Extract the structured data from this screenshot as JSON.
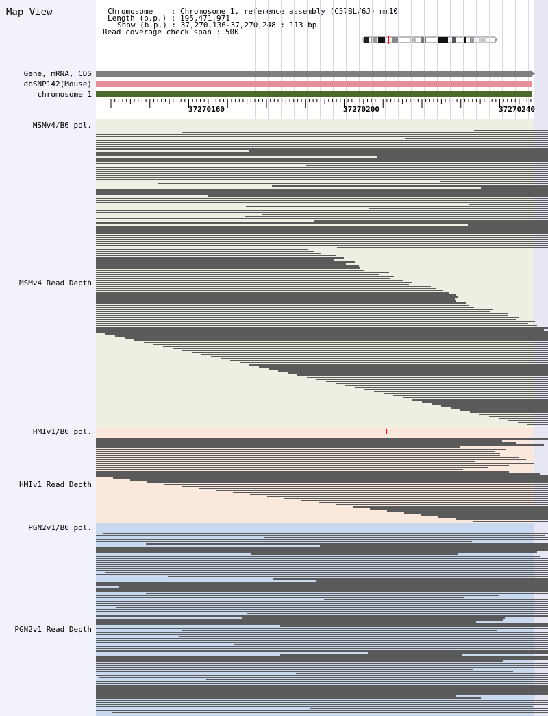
{
  "app": {
    "title": "Map View"
  },
  "header": {
    "chromosome_label": "Chromosome",
    "chromosome_value": "Chromosome 1, reference assembly (C57BL/6J) mm10",
    "length_label": "Length (b.p.)",
    "length_value": "195,471,971",
    "show_label": "Show (b.p.)",
    "show_value": "37,270,136-37,270,248 : 113 bp",
    "span_label": "Read coverage check span",
    "span_value": "500"
  },
  "tracks": {
    "gene": "Gene, mRNA, CDS",
    "dbsnp": "dbSNP142(Mouse)",
    "chrom": "chromosome 1",
    "colors": {
      "gene": "#7f7f7f",
      "dbsnp": "#e8909a",
      "chrom": "#4a6a2a"
    }
  },
  "ruler": {
    "ticks": [
      "37270160",
      "37270200",
      "37270240"
    ]
  },
  "panels": [
    {
      "pol_label": "MSMv4/B6 pol.",
      "depth_label": "MSMv4 Read Depth",
      "bg": "#ecf0e2"
    },
    {
      "pol_label": "HMIv1/B6 pol.",
      "depth_label": "HMIv1 Read Depth",
      "bg": "#fbe8dc"
    },
    {
      "pol_label": "PGN2v1/B6 pol.",
      "depth_label": "PGN2v1 Read Depth",
      "bg": "#c8d8ee"
    }
  ]
}
